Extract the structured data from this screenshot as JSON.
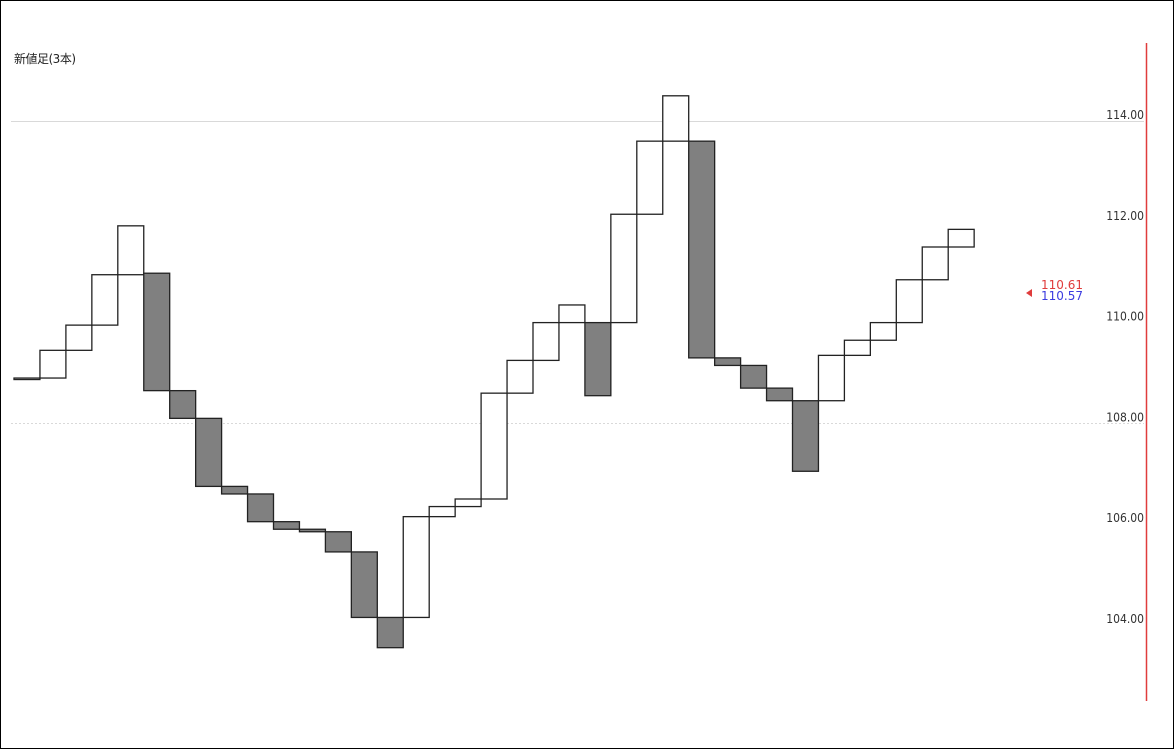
{
  "chart_data": {
    "type": "bar",
    "title": "新値足(3本)",
    "xlabel": "",
    "ylabel": "",
    "ylim": [
      102.2,
      116.0
    ],
    "yticks": [
      114.0,
      112.0,
      110.0,
      108.0,
      106.0,
      104.0
    ],
    "ytick_labels": [
      "114.00",
      "112.00",
      "110.00",
      "108.00",
      "106.00",
      "104.00"
    ],
    "gridlines": [
      {
        "value": 114.0,
        "style": "solid"
      },
      {
        "value": 108.0,
        "style": "dashed"
      }
    ],
    "bricks": [
      {
        "open": 108.88,
        "close": 108.9,
        "direction": "up"
      },
      {
        "open": 108.9,
        "close": 109.45,
        "direction": "up"
      },
      {
        "open": 109.45,
        "close": 109.95,
        "direction": "up"
      },
      {
        "open": 109.95,
        "close": 110.95,
        "direction": "up"
      },
      {
        "open": 110.95,
        "close": 111.92,
        "direction": "up"
      },
      {
        "open": 110.98,
        "close": 108.65,
        "direction": "down"
      },
      {
        "open": 108.65,
        "close": 108.1,
        "direction": "down"
      },
      {
        "open": 108.1,
        "close": 106.75,
        "direction": "down"
      },
      {
        "open": 106.75,
        "close": 106.6,
        "direction": "down"
      },
      {
        "open": 106.6,
        "close": 106.05,
        "direction": "down"
      },
      {
        "open": 106.05,
        "close": 105.9,
        "direction": "down"
      },
      {
        "open": 105.9,
        "close": 105.85,
        "direction": "down"
      },
      {
        "open": 105.85,
        "close": 105.45,
        "direction": "down"
      },
      {
        "open": 105.45,
        "close": 104.15,
        "direction": "down"
      },
      {
        "open": 104.15,
        "close": 103.55,
        "direction": "down"
      },
      {
        "open": 104.15,
        "close": 106.15,
        "direction": "up"
      },
      {
        "open": 106.15,
        "close": 106.35,
        "direction": "up"
      },
      {
        "open": 106.35,
        "close": 106.5,
        "direction": "up"
      },
      {
        "open": 106.5,
        "close": 108.6,
        "direction": "up"
      },
      {
        "open": 108.6,
        "close": 109.25,
        "direction": "up"
      },
      {
        "open": 109.25,
        "close": 110.0,
        "direction": "up"
      },
      {
        "open": 110.0,
        "close": 110.35,
        "direction": "up"
      },
      {
        "open": 110.0,
        "close": 108.55,
        "direction": "down"
      },
      {
        "open": 110.0,
        "close": 112.15,
        "direction": "up"
      },
      {
        "open": 112.15,
        "close": 113.6,
        "direction": "up"
      },
      {
        "open": 113.6,
        "close": 114.5,
        "direction": "up"
      },
      {
        "open": 113.6,
        "close": 109.3,
        "direction": "down"
      },
      {
        "open": 109.3,
        "close": 109.15,
        "direction": "down"
      },
      {
        "open": 109.15,
        "close": 108.7,
        "direction": "down"
      },
      {
        "open": 108.7,
        "close": 108.45,
        "direction": "down"
      },
      {
        "open": 108.45,
        "close": 107.05,
        "direction": "down"
      },
      {
        "open": 108.45,
        "close": 109.35,
        "direction": "up"
      },
      {
        "open": 109.35,
        "close": 109.65,
        "direction": "up"
      },
      {
        "open": 109.65,
        "close": 110.0,
        "direction": "up"
      },
      {
        "open": 110.0,
        "close": 110.85,
        "direction": "up"
      },
      {
        "open": 110.85,
        "close": 111.5,
        "direction": "up"
      },
      {
        "open": 111.5,
        "close": 111.85,
        "direction": "up"
      }
    ],
    "price_markers": [
      {
        "label": "110.61",
        "value": 110.61,
        "color": "#e03c3c"
      },
      {
        "label": "110.57",
        "value": 110.57,
        "color": "#3c3ce0"
      }
    ],
    "colors": {
      "down_fill": "#808080",
      "up_fill": "#ffffff",
      "outline": "#222222",
      "right_axis_line": "#e03c3c",
      "grid": "#d9d9d9"
    }
  }
}
